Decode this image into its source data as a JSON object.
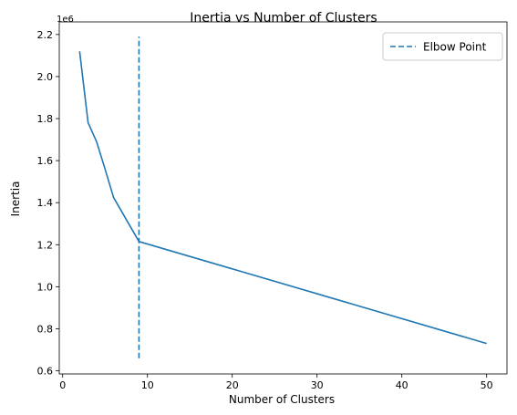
{
  "chart_data": {
    "type": "line",
    "title": "Inertia vs Number of Clusters",
    "xlabel": "Number of Clusters",
    "ylabel": "Inertia",
    "y_offset_label": "1e6",
    "xlim": [
      -0.4,
      52.4
    ],
    "ylim": [
      0.585,
      2.26
    ],
    "x_ticks": [
      0,
      10,
      20,
      30,
      40,
      50
    ],
    "x_tick_labels": [
      "0",
      "10",
      "20",
      "30",
      "40",
      "50"
    ],
    "y_ticks": [
      0.6,
      0.8,
      1.0,
      1.2,
      1.4,
      1.6,
      1.8,
      2.0,
      2.2
    ],
    "y_tick_labels": [
      "0.6",
      "0.8",
      "1.0",
      "1.2",
      "1.4",
      "1.6",
      "1.8",
      "2.0",
      "2.2"
    ],
    "grid": false,
    "legend_placement": "top-right",
    "series": [
      {
        "color": "#1f77b4",
        "style": "solid",
        "x": [
          2,
          3,
          4,
          5,
          6,
          7,
          8,
          9,
          50
        ],
        "y": [
          2.12,
          1.78,
          1.69,
          1.56,
          1.425,
          1.355,
          1.285,
          1.215,
          0.73
        ]
      }
    ],
    "vline": {
      "name": "Elbow Point",
      "color": "#1f77b4",
      "style": "dashed",
      "x": 9,
      "y_range": [
        0.66,
        2.19
      ]
    }
  }
}
